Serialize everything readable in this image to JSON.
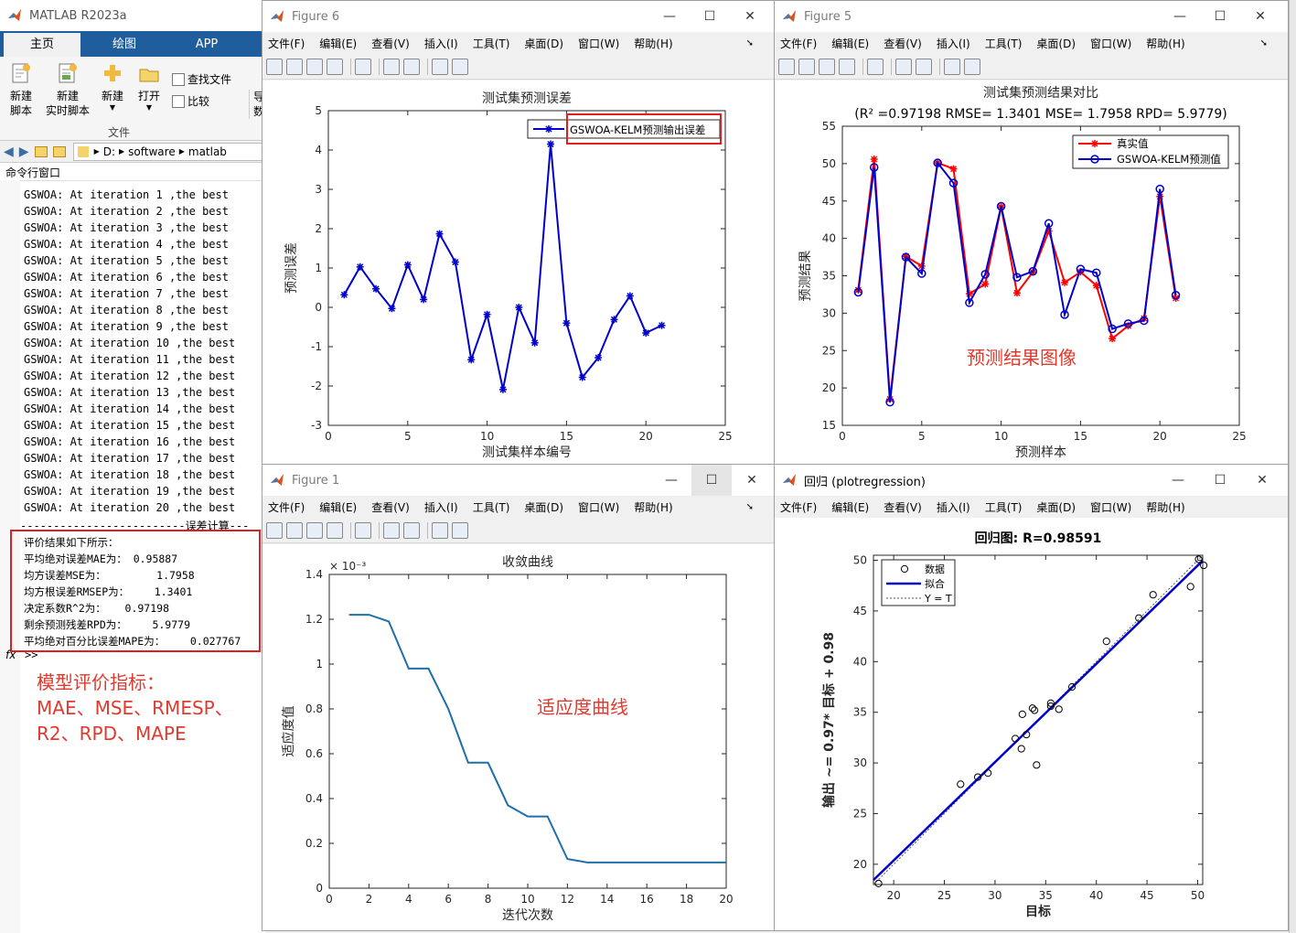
{
  "matlab": {
    "title": "MATLAB R2023a",
    "tabs": [
      "主页",
      "绘图",
      "APP"
    ],
    "ribbon": [
      {
        "label": "新建\n脚本",
        "icon": "new-script-icon"
      },
      {
        "label": "新建\n实时脚本",
        "icon": "new-live-script-icon"
      },
      {
        "label": "新建",
        "icon": "new-icon"
      },
      {
        "label": "打开",
        "icon": "open-icon"
      }
    ],
    "find_files": "查找文件",
    "compare": "比较",
    "file_group": "文件",
    "side_cut": "导\n数",
    "path": [
      "D:",
      "software",
      "matlab"
    ],
    "cmd_title": "命令行窗口",
    "iterations": [
      "GSWOA: At iteration 1 ,the best",
      "GSWOA: At iteration 2 ,the best",
      "GSWOA: At iteration 3 ,the best",
      "GSWOA: At iteration 4 ,the best",
      "GSWOA: At iteration 5 ,the best",
      "GSWOA: At iteration 6 ,the best",
      "GSWOA: At iteration 7 ,the best",
      "GSWOA: At iteration 8 ,the best",
      "GSWOA: At iteration 9 ,the best",
      "GSWOA: At iteration 10 ,the best",
      "GSWOA: At iteration 11 ,the best",
      "GSWOA: At iteration 12 ,the best",
      "GSWOA: At iteration 13 ,the best",
      "GSWOA: At iteration 14 ,the best",
      "GSWOA: At iteration 15 ,the best",
      "GSWOA: At iteration 16 ,the best",
      "GSWOA: At iteration 17 ,the best",
      "GSWOA: At iteration 18 ,the best",
      "GSWOA: At iteration 19 ,the best",
      "GSWOA: At iteration 20 ,the best"
    ],
    "separator": "-------------------------误差计算---",
    "eval_lines": [
      "评价结果如下所示：",
      "平均绝对误差MAE为： 0.95887",
      "均方误差MSE为：        1.7958",
      "均方根误差RMSEP为：    1.3401",
      "决定系数R^2为：   0.97198",
      "剩余预测残差RPD为：    5.9779",
      "平均绝对百分比误差MAPE为：    0.027767"
    ],
    "prompt": ">>",
    "annotation_lines": [
      "模型评价指标：",
      "MAE、MSE、RMESP、",
      "R2、RPD、MAPE"
    ]
  },
  "menu": [
    "文件(F)",
    "编辑(E)",
    "查看(V)",
    "插入(I)",
    "工具(T)",
    "桌面(D)",
    "窗口(W)",
    "帮助(H)"
  ],
  "figures": {
    "fig6_title": "Figure 6",
    "fig5_title": "Figure 5",
    "fig1_title": "Figure 1",
    "reg_title": "回归 (plotregression)"
  },
  "chart_data": [
    {
      "type": "line",
      "title": "测试集预测误差",
      "xlabel": "测试集样本编号",
      "ylabel": "预测误差",
      "xlim": [
        0,
        25
      ],
      "ylim": [
        -3,
        5
      ],
      "xticks": [
        0,
        5,
        10,
        15,
        20,
        25
      ],
      "yticks": [
        -3,
        -2,
        -1,
        0,
        1,
        2,
        3,
        4,
        5
      ],
      "legend": "top-right",
      "series": [
        {
          "name": "GSWOA-KELM预测输出误差",
          "color": "#0000cc",
          "x": [
            1,
            2,
            3,
            4,
            5,
            6,
            7,
            8,
            9,
            10,
            11,
            12,
            13,
            14,
            15,
            16,
            17,
            18,
            19,
            20,
            21
          ],
          "y": [
            0.32,
            1.03,
            0.47,
            -0.03,
            1.08,
            0.2,
            1.87,
            1.15,
            -1.33,
            -0.18,
            -2.09,
            0.0,
            -0.9,
            4.15,
            -0.4,
            -1.78,
            -1.28,
            -0.31,
            0.29,
            -0.65,
            -0.46
          ]
        }
      ]
    },
    {
      "type": "line",
      "title": "测试集预测结果对比",
      "subtitle": "(R² =0.97198 RMSE= 1.3401 MSE= 1.7958 RPD= 5.9779)",
      "xlabel": "预测样本",
      "ylabel": "预测结果",
      "xlim": [
        0,
        25
      ],
      "ylim": [
        15,
        55
      ],
      "xticks": [
        0,
        5,
        10,
        15,
        20,
        25
      ],
      "yticks": [
        15,
        20,
        25,
        30,
        35,
        40,
        45,
        50,
        55
      ],
      "legend": "top-right",
      "annotation": "预测结果图像",
      "series": [
        {
          "name": "真实值",
          "color": "#ff0000",
          "marker": "*",
          "x": [
            1,
            2,
            3,
            4,
            5,
            6,
            7,
            8,
            9,
            10,
            11,
            12,
            13,
            14,
            15,
            16,
            17,
            18,
            19,
            20,
            21
          ],
          "y": [
            33.1,
            50.6,
            18.5,
            37.6,
            36.3,
            50.1,
            49.3,
            32.6,
            33.9,
            44.2,
            32.7,
            35.5,
            41.0,
            34.1,
            35.5,
            33.7,
            26.6,
            28.3,
            29.3,
            45.6,
            32.0
          ]
        },
        {
          "name": "GSWOA-KELM预测值",
          "color": "#0000cc",
          "marker": "o",
          "x": [
            1,
            2,
            3,
            4,
            5,
            6,
            7,
            8,
            9,
            10,
            11,
            12,
            13,
            14,
            15,
            16,
            17,
            18,
            19,
            20,
            21
          ],
          "y": [
            32.8,
            49.5,
            18.1,
            37.5,
            35.3,
            50.1,
            47.4,
            31.4,
            35.2,
            44.3,
            34.8,
            35.6,
            42.0,
            29.8,
            35.9,
            35.4,
            27.9,
            28.6,
            29.0,
            46.6,
            32.4
          ]
        }
      ]
    },
    {
      "type": "line",
      "title": "收敛曲线",
      "xlabel": "迭代次数",
      "ylabel": "适应度值",
      "exponent": "× 10⁻³",
      "xlim": [
        0,
        20
      ],
      "ylim": [
        0,
        1.4
      ],
      "xticks": [
        0,
        2,
        4,
        6,
        8,
        10,
        12,
        14,
        16,
        18,
        20
      ],
      "yticks": [
        0,
        0.2,
        0.4,
        0.6,
        0.8,
        1,
        1.2,
        1.4
      ],
      "annotation": "适应度曲线",
      "series": [
        {
          "color": "#1f6fa8",
          "x": [
            1,
            2,
            3,
            4,
            5,
            6,
            7,
            8,
            9,
            10,
            11,
            12,
            13,
            14,
            15,
            16,
            17,
            18,
            19,
            20
          ],
          "y": [
            1.22,
            1.22,
            1.19,
            0.98,
            0.98,
            0.8,
            0.56,
            0.56,
            0.37,
            0.32,
            0.32,
            0.13,
            0.115,
            0.115,
            0.115,
            0.115,
            0.115,
            0.115,
            0.115,
            0.115
          ]
        }
      ]
    },
    {
      "type": "scatter",
      "title": "回归图: R=0.98591",
      "xlabel": "目标",
      "ylabel": "输出 ~= 0.97* 目标 + 0.98",
      "xlim": [
        18,
        50.5
      ],
      "ylim": [
        18,
        50.5
      ],
      "xticks": [
        20,
        25,
        30,
        35,
        40,
        45,
        50
      ],
      "yticks": [
        20,
        25,
        30,
        35,
        40,
        45,
        50
      ],
      "legend": "top-left",
      "fit": {
        "slope": 0.97,
        "intercept": 0.98
      },
      "legend_entries": [
        "数据",
        "拟合",
        "Y = T"
      ],
      "points_x": [
        18.5,
        26.6,
        28.3,
        29.3,
        32.0,
        32.6,
        32.7,
        33.1,
        33.7,
        33.9,
        34.1,
        35.5,
        35.5,
        36.3,
        37.6,
        41.0,
        44.2,
        45.6,
        49.3,
        50.1,
        50.6
      ],
      "points_y": [
        18.1,
        27.9,
        28.6,
        29.0,
        32.4,
        31.4,
        34.8,
        32.8,
        35.4,
        35.2,
        29.8,
        35.9,
        35.6,
        35.3,
        37.5,
        42.0,
        44.3,
        46.6,
        47.4,
        50.1,
        49.5
      ]
    }
  ]
}
